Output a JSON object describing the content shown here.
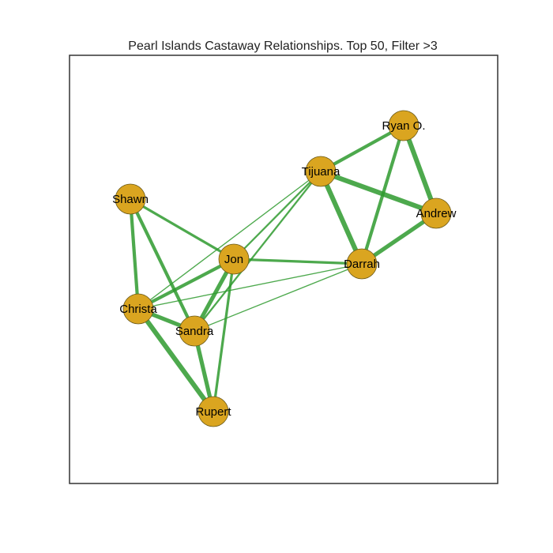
{
  "figure": {
    "title": "Pearl Islands Castaway Relationships. Top 50, Filter >3"
  },
  "colors": {
    "node_fill": "#DAA520",
    "node_stroke": "#6b5a1a",
    "edge": "#2e9a2e",
    "frame": "#333333"
  },
  "nodes": [
    {
      "id": "ryan",
      "label": "Ryan O."
    },
    {
      "id": "tijuana",
      "label": "Tijuana"
    },
    {
      "id": "andrew",
      "label": "Andrew"
    },
    {
      "id": "shawn",
      "label": "Shawn"
    },
    {
      "id": "jon",
      "label": "Jon"
    },
    {
      "id": "darrah",
      "label": "Darrah"
    },
    {
      "id": "christa",
      "label": "Christa"
    },
    {
      "id": "sandra",
      "label": "Sandra"
    },
    {
      "id": "rupert",
      "label": "Rupert"
    }
  ],
  "edges": [
    {
      "source": "tijuana",
      "target": "ryan",
      "weight": 4
    },
    {
      "source": "tijuana",
      "target": "andrew",
      "weight": 6
    },
    {
      "source": "tijuana",
      "target": "darrah",
      "weight": 6
    },
    {
      "source": "ryan",
      "target": "andrew",
      "weight": 6
    },
    {
      "source": "ryan",
      "target": "darrah",
      "weight": 4
    },
    {
      "source": "andrew",
      "target": "darrah",
      "weight": 5
    },
    {
      "source": "tijuana",
      "target": "jon",
      "weight": 2
    },
    {
      "source": "tijuana",
      "target": "christa",
      "weight": 1
    },
    {
      "source": "tijuana",
      "target": "sandra",
      "weight": 2
    },
    {
      "source": "darrah",
      "target": "jon",
      "weight": 3
    },
    {
      "source": "darrah",
      "target": "christa",
      "weight": 1
    },
    {
      "source": "darrah",
      "target": "sandra",
      "weight": 1
    },
    {
      "source": "shawn",
      "target": "christa",
      "weight": 4
    },
    {
      "source": "shawn",
      "target": "sandra",
      "weight": 4
    },
    {
      "source": "shawn",
      "target": "jon",
      "weight": 3
    },
    {
      "source": "jon",
      "target": "christa",
      "weight": 4
    },
    {
      "source": "jon",
      "target": "sandra",
      "weight": 5
    },
    {
      "source": "jon",
      "target": "rupert",
      "weight": 3
    },
    {
      "source": "christa",
      "target": "sandra",
      "weight": 5
    },
    {
      "source": "christa",
      "target": "rupert",
      "weight": 6
    },
    {
      "source": "sandra",
      "target": "rupert",
      "weight": 5
    }
  ]
}
